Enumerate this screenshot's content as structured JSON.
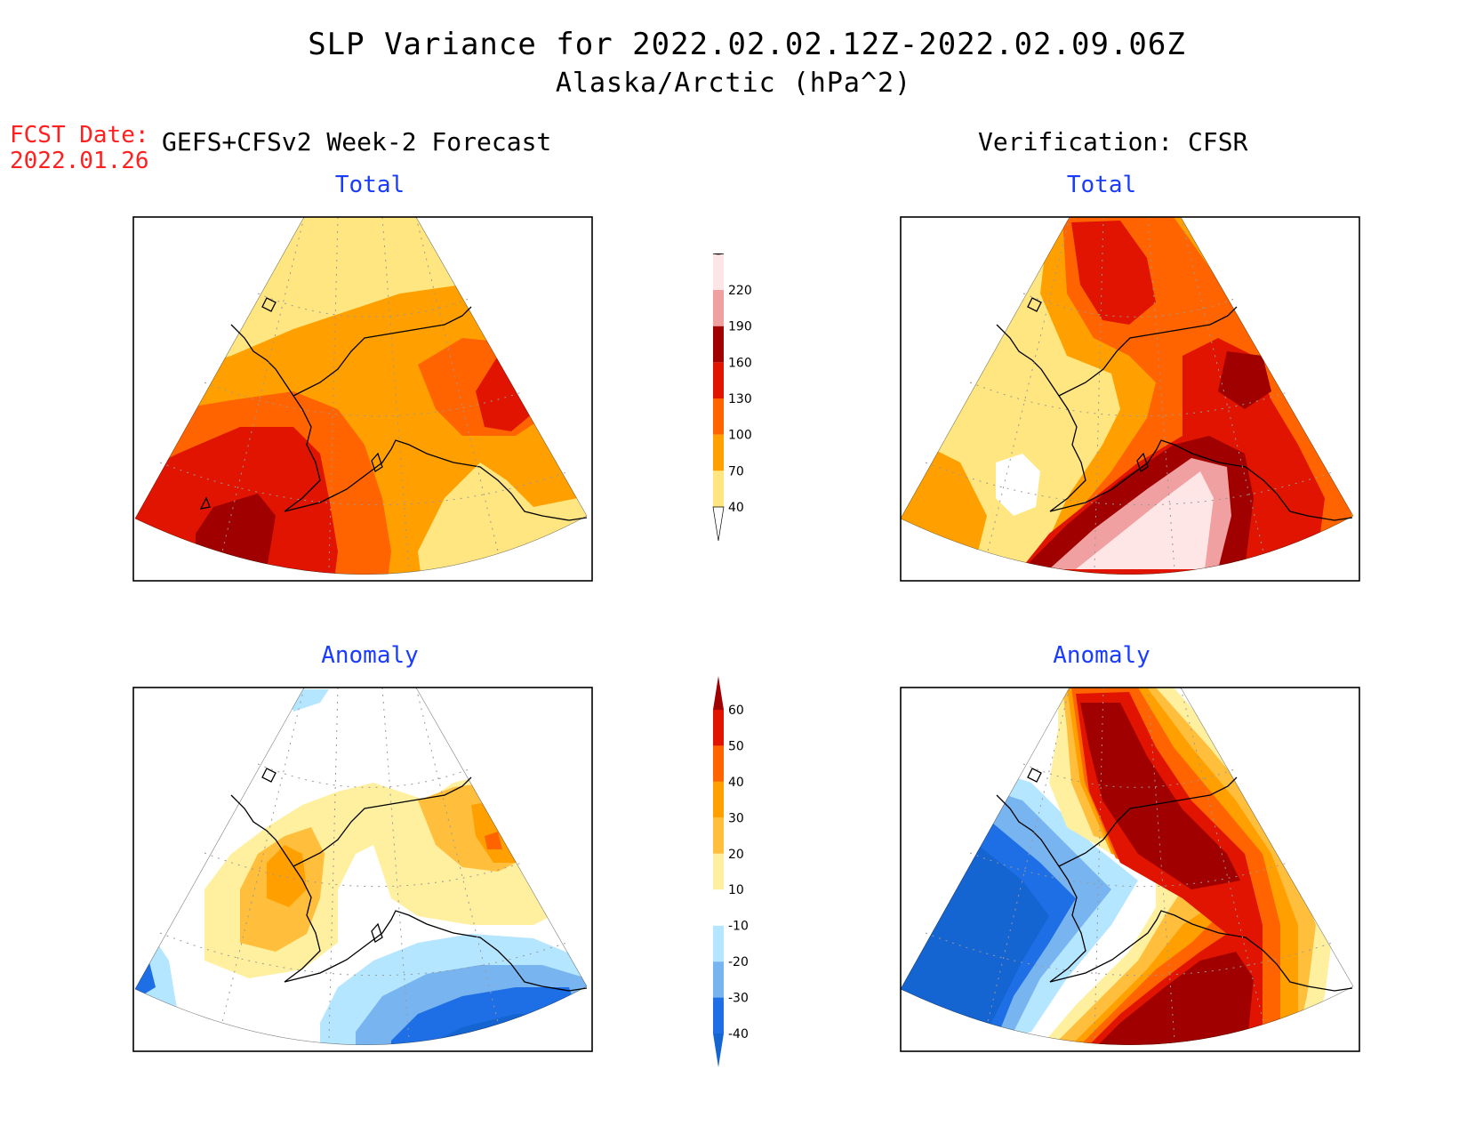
{
  "title": {
    "line1": "SLP Variance for 2022.02.02.12Z-2022.02.09.06Z",
    "line2": "Alaska/Arctic (hPa^2)"
  },
  "forecast_date": {
    "label": "FCST Date:",
    "value": "2022.01.26"
  },
  "columns": {
    "left_heading": "GEFS+CFSv2 Week-2 Forecast",
    "right_heading": "Verification: CFSR"
  },
  "panels": {
    "forecast_total": "Total",
    "forecast_anomaly": "Anomaly",
    "verification_total": "Total",
    "verification_anomaly": "Anomaly"
  },
  "colorbars": {
    "total": {
      "levels": [
        "40",
        "70",
        "100",
        "130",
        "160",
        "190",
        "220"
      ],
      "colors": [
        "#ffe680",
        "#ffa000",
        "#ff6400",
        "#e01400",
        "#a00000",
        "#f0a0a0",
        "#ffe6e6"
      ]
    },
    "anomaly": {
      "levels": [
        "-40",
        "-30",
        "-20",
        "-10",
        "10",
        "20",
        "30",
        "40",
        "50",
        "60"
      ],
      "colors": [
        "#1464d2",
        "#1e6ee6",
        "#78b4f0",
        "#b4e6ff",
        "#e6ffff",
        "#ffffff",
        "#fff0a0",
        "#ffbe3c",
        "#ffa000",
        "#ff6400",
        "#e01400",
        "#a00000"
      ]
    }
  },
  "palette": {
    "total": {
      "c40": "#ffe680",
      "c70": "#ffa000",
      "c100": "#ff6400",
      "c130": "#e01400",
      "c160": "#a00000",
      "c190": "#f0a0a0",
      "c220": "#ffe6e6"
    },
    "anomaly": {
      "n40": "#1464d2",
      "n30": "#1e6ee6",
      "n20": "#78b4f0",
      "n10": "#b4e6ff",
      "p10": "#fff0a0",
      "p20": "#ffbe3c",
      "p30": "#ffa000",
      "p40": "#ff6400",
      "p50": "#e01400",
      "p60": "#a00000"
    }
  }
}
